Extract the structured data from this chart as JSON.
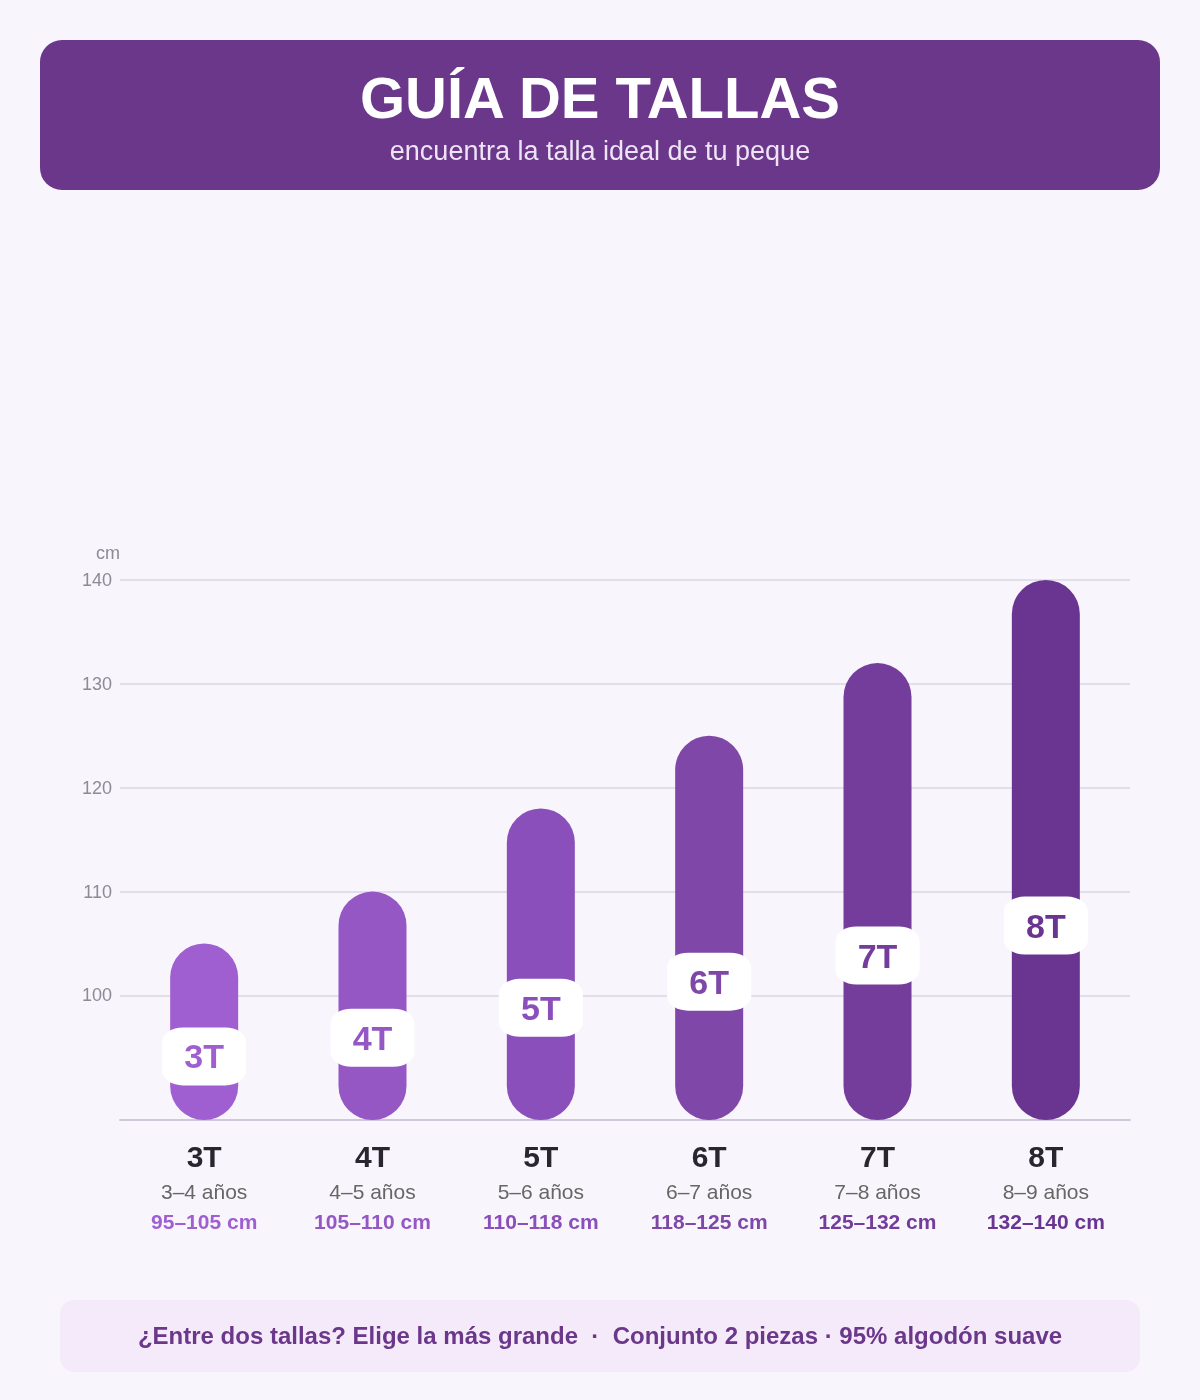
{
  "chart_data": {
    "type": "bar",
    "title": "GUÍA DE TALLAS",
    "subtitle": "encuentra la talla ideal de tu peque",
    "ylabel": "cm",
    "categories": [
      "3T\n3–4 años\n95–105 cm",
      "4T\n4–5 años\n105–110 cm",
      "5T\n5–6 años\n110–118 cm",
      "6T\n6–7 años\n118–125 cm",
      "7T\n7–8 años\n125–132 cm",
      "8T\n8–9 años\n132–140 cm"
    ],
    "values": [
      105,
      110,
      118,
      125,
      132,
      140
    ],
    "colors": [
      "#a05fd0",
      "#9457c4",
      "#8a4fba",
      "#7e47a8",
      "#743d9c",
      "#6a3590"
    ],
    "ylim": [
      88,
      140
    ],
    "yticks": [
      100,
      110,
      120,
      130,
      140
    ],
    "grid": "y",
    "annotations": [
      "3T",
      "4T",
      "5T",
      "6T",
      "7T",
      "8T",
      "¿Entre dos tallas? Elige la más grande  ·  Conjunto 2 piezas · 95% algodón suave"
    ]
  }
}
